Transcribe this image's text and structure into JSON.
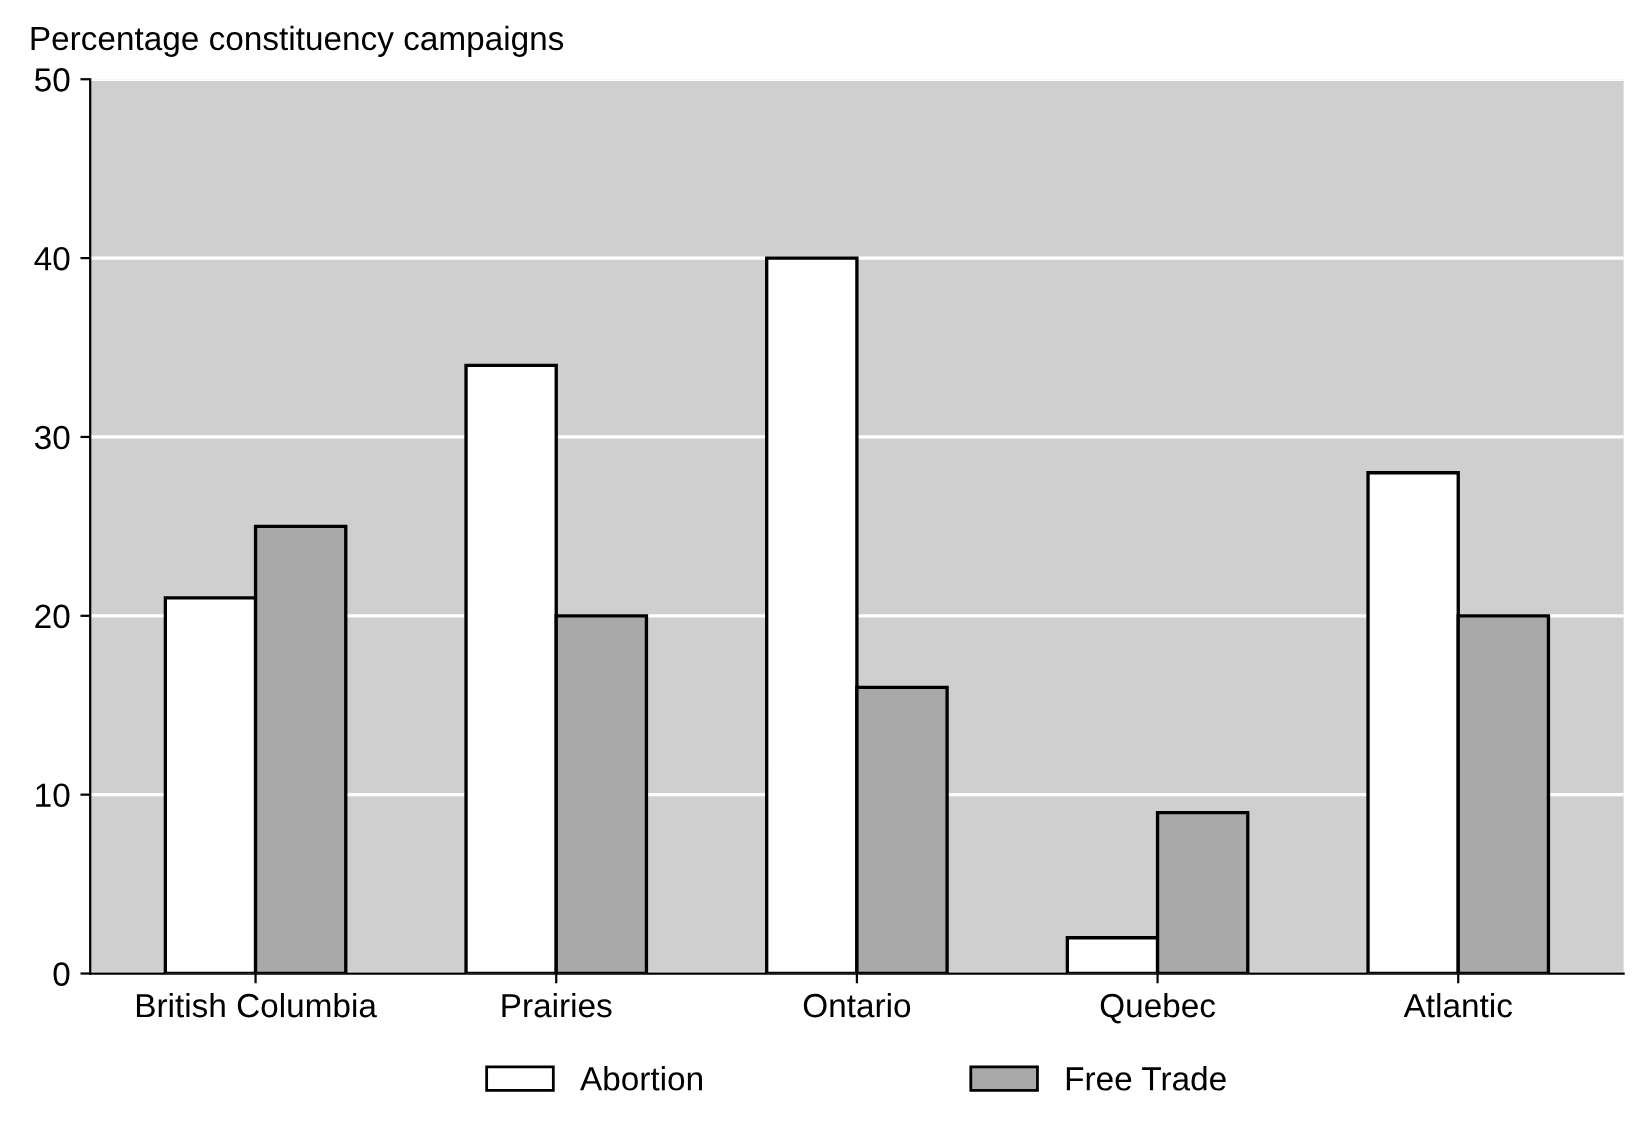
{
  "chart_data": {
    "type": "bar",
    "ylabel": "Percentage constituency campaigns",
    "categories": [
      "British Columbia",
      "Prairies",
      "Ontario",
      "Quebec",
      "Atlantic"
    ],
    "series": [
      {
        "name": "Abortion",
        "color": "#ffffff",
        "values": [
          21,
          34,
          40,
          2,
          28
        ]
      },
      {
        "name": "Free Trade",
        "color": "#a9a9a9",
        "values": [
          25,
          20,
          16,
          9,
          20
        ]
      }
    ],
    "ylim": [
      0,
      50
    ],
    "yticks": [
      0,
      10,
      20,
      30,
      40,
      50
    ],
    "grid": "y",
    "legend": "bottom"
  }
}
